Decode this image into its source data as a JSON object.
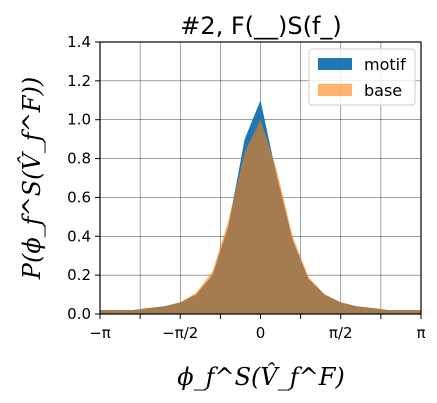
{
  "chart_data": {
    "type": "area",
    "title": "#2, F(__)S(f_)",
    "xlabel": "ϕ_f^S(V̂_f^F)",
    "ylabel": "P(ϕ_f^S(V̂_f^F))",
    "xlim": [
      -3.1416,
      3.1416
    ],
    "ylim": [
      0,
      1.4
    ],
    "grid": true,
    "legend_position": "top-right",
    "x_ticks": [
      {
        "value": -3.1416,
        "label": "−π"
      },
      {
        "value": -1.5708,
        "label": "−π/2"
      },
      {
        "value": 0,
        "label": "0"
      },
      {
        "value": 1.5708,
        "label": "π/2"
      },
      {
        "value": 3.1416,
        "label": "π"
      }
    ],
    "y_ticks": [
      {
        "value": 0.0,
        "label": "0.0"
      },
      {
        "value": 0.2,
        "label": "0.2"
      },
      {
        "value": 0.4,
        "label": "0.4"
      },
      {
        "value": 0.6,
        "label": "0.6"
      },
      {
        "value": 0.8,
        "label": "0.8"
      },
      {
        "value": 1.0,
        "label": "1.0"
      },
      {
        "value": 1.2,
        "label": "1.2"
      },
      {
        "value": 1.4,
        "label": "1.4"
      }
    ],
    "x": [
      -3.14,
      -2.83,
      -2.51,
      -2.2,
      -1.88,
      -1.57,
      -1.26,
      -0.94,
      -0.63,
      -0.31,
      0.0,
      0.31,
      0.63,
      0.94,
      1.26,
      1.57,
      1.88,
      2.2,
      2.51,
      2.83,
      3.14
    ],
    "series": [
      {
        "name": "motif",
        "color": "#1f77b4",
        "values": [
          0.02,
          0.02,
          0.02,
          0.03,
          0.04,
          0.06,
          0.1,
          0.2,
          0.45,
          0.9,
          1.1,
          0.72,
          0.38,
          0.18,
          0.1,
          0.06,
          0.04,
          0.03,
          0.02,
          0.02,
          0.02
        ]
      },
      {
        "name": "base",
        "color": "#ff7f0e",
        "values": [
          0.02,
          0.02,
          0.02,
          0.03,
          0.04,
          0.06,
          0.11,
          0.22,
          0.48,
          0.83,
          1.0,
          0.75,
          0.4,
          0.19,
          0.1,
          0.06,
          0.04,
          0.03,
          0.02,
          0.02,
          0.02
        ]
      }
    ]
  }
}
